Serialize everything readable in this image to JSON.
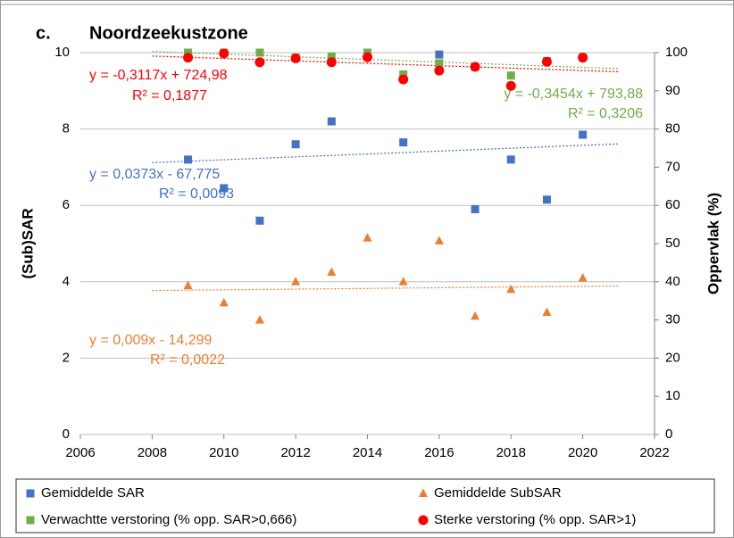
{
  "chart_data": {
    "type": "scatter",
    "panel": "c.",
    "title": "Noordzeekustzone",
    "ylabel": "(Sub)SAR",
    "y2label": "Oppervlak (%)",
    "xlim": [
      2006,
      2022
    ],
    "xticks": [
      2006,
      2008,
      2010,
      2012,
      2014,
      2016,
      2018,
      2020,
      2022
    ],
    "ylim": [
      0,
      10
    ],
    "yticks": [
      0,
      2,
      4,
      6,
      8,
      10
    ],
    "y2lim": [
      0,
      100
    ],
    "y2ticks": [
      0,
      10,
      20,
      30,
      40,
      50,
      60,
      70,
      80,
      90,
      100
    ],
    "grid": true,
    "legend": "bottom",
    "x": [
      2009,
      2010,
      2011,
      2012,
      2013,
      2014,
      2015,
      2016,
      2017,
      2018,
      2019,
      2020
    ],
    "series": [
      {
        "name": "Gemiddelde SAR",
        "color": "#4472c4",
        "marker": "square",
        "axis": "y",
        "values": [
          7.2,
          6.45,
          5.6,
          7.6,
          8.2,
          null,
          7.65,
          9.95,
          5.9,
          7.2,
          6.15,
          7.85
        ],
        "trendline": {
          "equation": "y = 0,0373x - 67,775",
          "r2": "R² = 0,0093",
          "x": [
            2008,
            2021
          ],
          "values": [
            7.12,
            7.61
          ]
        }
      },
      {
        "name": "Gemiddelde SubSAR",
        "color": "#ed7d31",
        "marker": "triangle",
        "axis": "y",
        "values": [
          3.9,
          3.45,
          3.0,
          4.0,
          4.25,
          5.15,
          4.0,
          5.07,
          3.1,
          3.8,
          3.2,
          4.1
        ],
        "trendline": {
          "equation": "y = 0,009x - 14,299",
          "r2": "R² = 0,0022",
          "x": [
            2008,
            2021
          ],
          "values": [
            3.77,
            3.89
          ]
        }
      },
      {
        "name": "Verwachtte verstoring (% opp. SAR>0,666)",
        "color": "#70ad47",
        "marker": "square",
        "axis": "y2",
        "values": [
          100,
          100,
          100,
          98.7,
          99,
          100,
          94.3,
          97.2,
          96.3,
          94,
          97.8,
          98.8
        ],
        "trendline": {
          "equation": "y = -0,3454x + 793,88",
          "r2": "R² = 0,3206",
          "x": [
            2008,
            2021
          ],
          "values": [
            100.3,
            95.8
          ]
        }
      },
      {
        "name": "Sterke verstoring (% opp. SAR>1)",
        "color": "#ff0000",
        "marker": "circle",
        "axis": "y2",
        "values": [
          98.7,
          99.8,
          97.5,
          98.5,
          97.5,
          98.8,
          93,
          95.3,
          96.3,
          91.3,
          97.6,
          98.7
        ],
        "trendline": {
          "equation": "y = -0,3117x + 724,98",
          "r2": "R² = 0,1877",
          "x": [
            2008,
            2021
          ],
          "values": [
            99.1,
            95.0
          ]
        }
      }
    ]
  }
}
